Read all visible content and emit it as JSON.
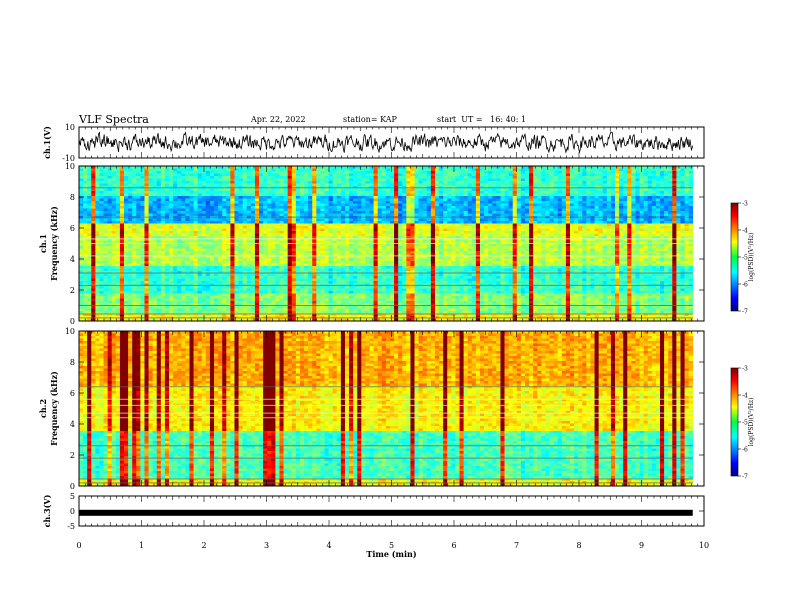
{
  "header": {
    "title": "VLF Spectra",
    "date": "Apr. 22, 2022",
    "station": "station= KAP",
    "start": "start  UT =   16: 40: 1"
  },
  "chart_data": [
    {
      "type": "line",
      "panel": "waveform-ch1",
      "ylabel": "ch.1(V)",
      "ylim": [
        -10,
        10
      ],
      "yticks": [
        "10",
        "-10"
      ],
      "xlim": [
        0,
        10
      ],
      "x_units": "min",
      "series": [
        {
          "values_summary": "noisy waveform oscillating roughly between -6 and 6 V"
        }
      ]
    },
    {
      "type": "heatmap",
      "panel": "spectrogram-ch1",
      "ylabel": "ch.1",
      "ylabel2": "Frequency (kHz)",
      "ylim": [
        0,
        10
      ],
      "yticks": [
        "0",
        "2",
        "4",
        "6",
        "8",
        "10"
      ],
      "xlim": [
        0,
        10
      ],
      "colorbar": {
        "label": "log(PSD)(V²/Hz)",
        "range": [
          -7,
          -3
        ],
        "ticks": [
          "-3",
          "-4",
          "-5",
          "-6",
          "-7"
        ],
        "colormap": "jet"
      },
      "data_extent_x": [
        0,
        9.82
      ]
    },
    {
      "type": "heatmap",
      "panel": "spectrogram-ch2",
      "ylabel": "ch.2",
      "ylabel2": "Frequency (kHz)",
      "ylim": [
        0,
        10
      ],
      "yticks": [
        "0",
        "2",
        "4",
        "6",
        "8",
        "10"
      ],
      "xlim": [
        0,
        10
      ],
      "colorbar": {
        "label": "log(PSD)(V²/Hz)",
        "range": [
          -7,
          -3
        ],
        "ticks": [
          "-3",
          "-4",
          "-5",
          "-6",
          "-7"
        ],
        "colormap": "jet"
      },
      "data_extent_x": [
        0,
        9.82
      ]
    },
    {
      "type": "line",
      "panel": "waveform-ch3",
      "ylabel": "ch.3(V)",
      "ylim": [
        -5,
        5
      ],
      "yticks": [
        "5",
        "0",
        "-5"
      ],
      "xlim": [
        0,
        10
      ],
      "xlabel": "Time  (min)",
      "xticks": [
        "0",
        "1",
        "2",
        "3",
        "4",
        "5",
        "6",
        "7",
        "8",
        "9",
        "10"
      ],
      "series": [
        {
          "values_summary": "flat line near -0.6 V"
        }
      ]
    }
  ]
}
